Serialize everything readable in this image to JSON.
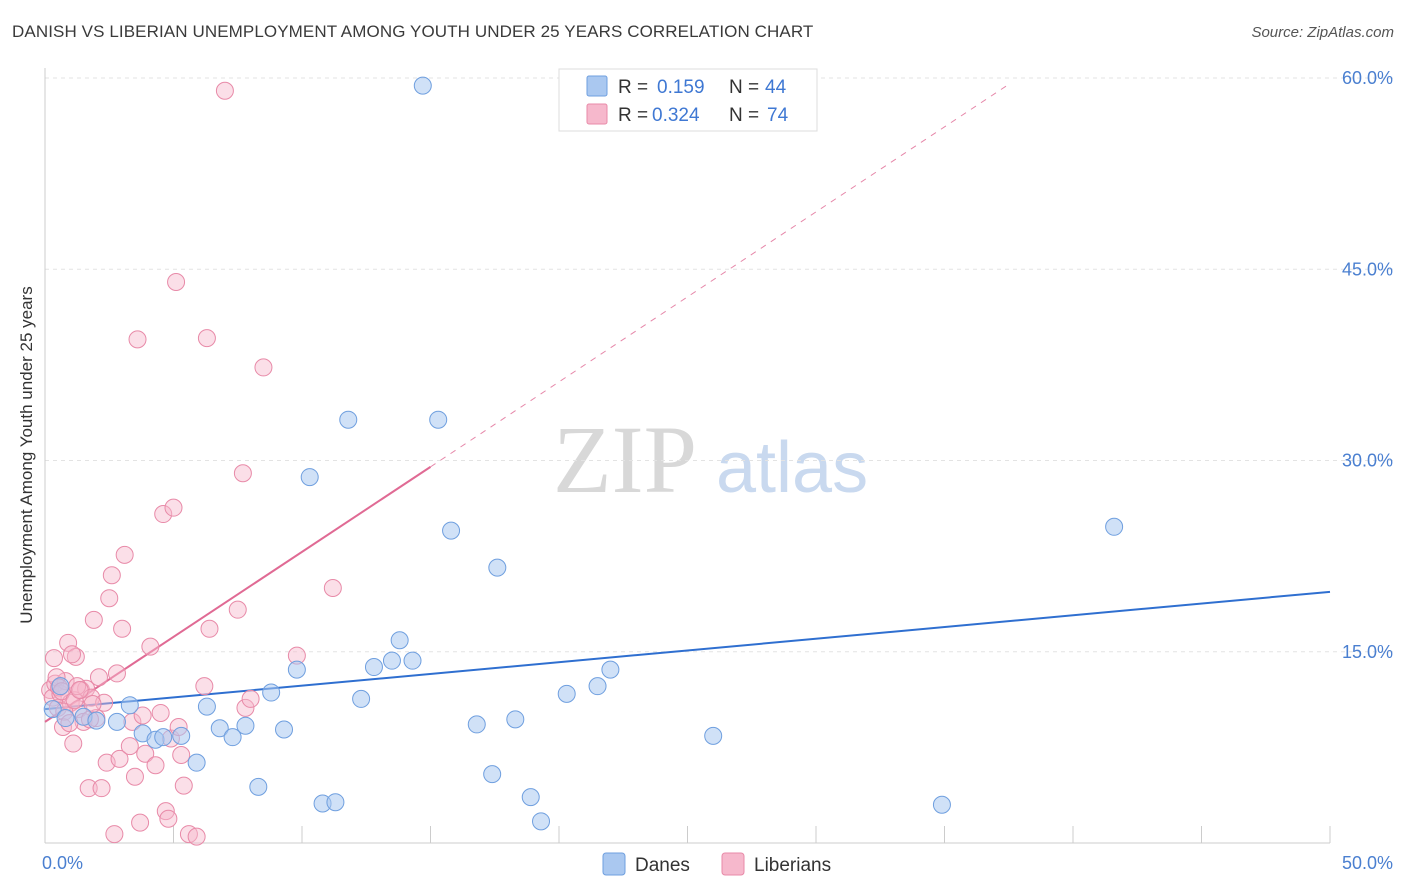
{
  "header": {
    "title": "DANISH VS LIBERIAN UNEMPLOYMENT AMONG YOUTH UNDER 25 YEARS CORRELATION CHART",
    "source": "Source: ZipAtlas.com"
  },
  "watermark": {
    "zip": "ZIP",
    "atlas": "atlas"
  },
  "stats_legend": {
    "rows": [
      {
        "r_label": "R =",
        "r_value": "0.159",
        "n_label": "N =",
        "n_value": "44"
      },
      {
        "r_label": "R =",
        "r_value": "0.324",
        "n_label": "N =",
        "n_value": "74"
      }
    ]
  },
  "colors": {
    "danes_fill": "#aac8f0",
    "danes_stroke": "#6f9fdf",
    "danes_line": "#2f6fd0",
    "liberians_fill": "#f6b8cc",
    "liberians_stroke": "#e88aa8",
    "liberians_line": "#e06a94",
    "tick_text": "#4a7fd0",
    "grid": "#e3e3e3"
  },
  "chart_data": {
    "type": "scatter",
    "title": "DANISH VS LIBERIAN UNEMPLOYMENT AMONG YOUTH UNDER 25 YEARS CORRELATION CHART",
    "xlabel": "",
    "ylabel": "Unemployment Among Youth under 25 years",
    "xlim": [
      0,
      50
    ],
    "ylim": [
      0,
      60
    ],
    "x_tick_labels": [
      "0.0%",
      "50.0%"
    ],
    "y_ticks": [
      15,
      30,
      45,
      60
    ],
    "y_tick_labels": [
      "15.0%",
      "30.0%",
      "45.0%",
      "60.0%"
    ],
    "grid": true,
    "legend_position": "bottom-center",
    "series": [
      {
        "name": "Danes",
        "r": 0.159,
        "n": 44,
        "trend": {
          "x": [
            0,
            50
          ],
          "y": [
            10.5,
            19.7
          ],
          "dashed_extension": false
        },
        "points": [
          [
            0.3,
            10.5
          ],
          [
            0.8,
            9.8
          ],
          [
            1.5,
            9.9
          ],
          [
            2.0,
            9.6
          ],
          [
            2.8,
            9.5
          ],
          [
            3.3,
            10.8
          ],
          [
            3.8,
            8.6
          ],
          [
            4.3,
            8.1
          ],
          [
            4.6,
            8.3
          ],
          [
            5.3,
            8.4
          ],
          [
            5.9,
            6.3
          ],
          [
            6.3,
            10.7
          ],
          [
            6.8,
            9.0
          ],
          [
            7.3,
            8.3
          ],
          [
            7.8,
            9.2
          ],
          [
            8.3,
            4.4
          ],
          [
            8.8,
            11.8
          ],
          [
            9.3,
            8.9
          ],
          [
            9.8,
            13.6
          ],
          [
            10.3,
            28.7
          ],
          [
            10.8,
            3.1
          ],
          [
            11.3,
            3.2
          ],
          [
            11.8,
            33.2
          ],
          [
            12.3,
            11.3
          ],
          [
            12.8,
            13.8
          ],
          [
            13.5,
            14.3
          ],
          [
            13.8,
            15.9
          ],
          [
            14.3,
            14.3
          ],
          [
            14.7,
            59.4
          ],
          [
            15.3,
            33.2
          ],
          [
            15.8,
            24.5
          ],
          [
            16.8,
            9.3
          ],
          [
            17.4,
            5.4
          ],
          [
            17.6,
            21.6
          ],
          [
            18.3,
            9.7
          ],
          [
            18.9,
            3.6
          ],
          [
            19.3,
            1.7
          ],
          [
            20.3,
            11.7
          ],
          [
            21.5,
            12.3
          ],
          [
            22.0,
            13.6
          ],
          [
            26.0,
            8.4
          ],
          [
            34.9,
            3.0
          ],
          [
            41.6,
            24.8
          ],
          [
            0.6,
            12.3
          ]
        ]
      },
      {
        "name": "Liberians",
        "r": 0.324,
        "n": 74,
        "trend": {
          "x": [
            0,
            15
          ],
          "y": [
            9.5,
            29.5
          ],
          "dashed_extension": {
            "x": [
              15,
              37.5
            ],
            "y": [
              29.5,
              59.5
            ]
          }
        },
        "points": [
          [
            0.2,
            12.0
          ],
          [
            0.3,
            11.4
          ],
          [
            0.4,
            12.5
          ],
          [
            0.5,
            10.6
          ],
          [
            0.6,
            11.7
          ],
          [
            0.7,
            9.1
          ],
          [
            0.8,
            12.7
          ],
          [
            0.9,
            15.7
          ],
          [
            1.0,
            11.0
          ],
          [
            1.1,
            7.8
          ],
          [
            1.2,
            14.6
          ],
          [
            1.3,
            10.5
          ],
          [
            1.4,
            12.0
          ],
          [
            1.5,
            9.5
          ],
          [
            1.6,
            12.1
          ],
          [
            1.7,
            4.3
          ],
          [
            1.8,
            11.4
          ],
          [
            1.9,
            17.5
          ],
          [
            2.0,
            9.8
          ],
          [
            2.1,
            13.0
          ],
          [
            2.2,
            4.3
          ],
          [
            2.3,
            11.0
          ],
          [
            2.4,
            6.3
          ],
          [
            2.5,
            19.2
          ],
          [
            2.6,
            21.0
          ],
          [
            2.7,
            0.7
          ],
          [
            2.8,
            13.3
          ],
          [
            2.9,
            6.6
          ],
          [
            3.0,
            16.8
          ],
          [
            3.1,
            22.6
          ],
          [
            3.3,
            7.6
          ],
          [
            3.4,
            9.5
          ],
          [
            3.5,
            5.2
          ],
          [
            3.6,
            39.5
          ],
          [
            3.7,
            1.6
          ],
          [
            3.8,
            10.0
          ],
          [
            3.9,
            7.0
          ],
          [
            4.1,
            15.4
          ],
          [
            4.3,
            6.1
          ],
          [
            4.5,
            10.2
          ],
          [
            4.6,
            25.8
          ],
          [
            4.7,
            2.5
          ],
          [
            4.8,
            1.9
          ],
          [
            4.9,
            8.2
          ],
          [
            5.0,
            26.3
          ],
          [
            5.1,
            44.0
          ],
          [
            5.2,
            9.1
          ],
          [
            5.3,
            6.9
          ],
          [
            5.4,
            4.5
          ],
          [
            5.6,
            0.7
          ],
          [
            5.9,
            0.5
          ],
          [
            6.2,
            12.3
          ],
          [
            6.3,
            39.6
          ],
          [
            6.4,
            16.8
          ],
          [
            7.0,
            59.0
          ],
          [
            7.5,
            18.3
          ],
          [
            7.7,
            29.0
          ],
          [
            7.8,
            10.6
          ],
          [
            8.0,
            11.3
          ],
          [
            8.5,
            37.3
          ],
          [
            0.35,
            14.5
          ],
          [
            0.45,
            13.0
          ],
          [
            0.55,
            12.2
          ],
          [
            0.65,
            11.9
          ],
          [
            0.75,
            10.3
          ],
          [
            1.05,
            14.8
          ],
          [
            1.15,
            11.2
          ],
          [
            1.25,
            12.3
          ],
          [
            1.35,
            12.0
          ],
          [
            1.75,
            9.7
          ],
          [
            1.85,
            10.9
          ],
          [
            9.8,
            14.7
          ],
          [
            11.2,
            20.0
          ],
          [
            0.95,
            9.4
          ]
        ]
      }
    ]
  }
}
